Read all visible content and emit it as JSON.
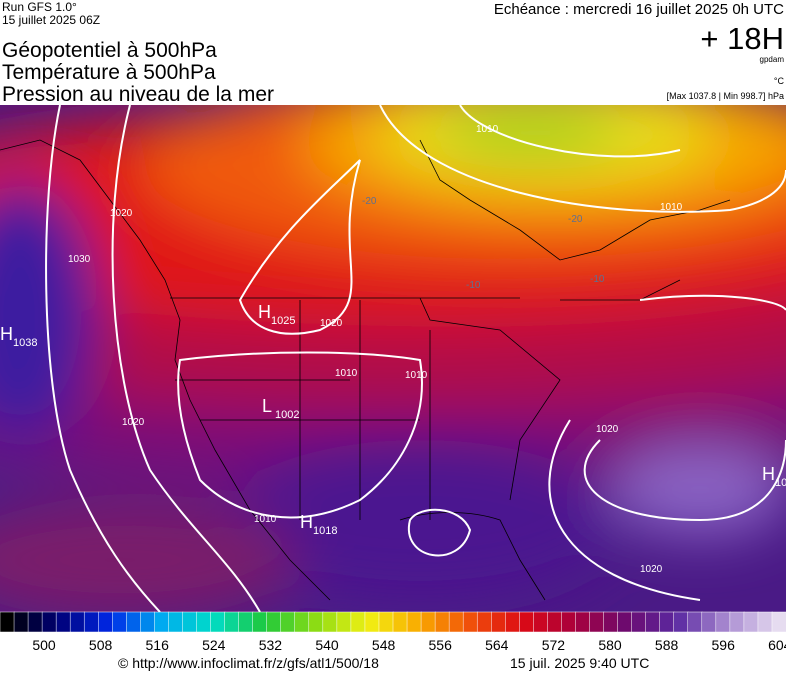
{
  "header": {
    "run": "Run GFS 1.0°",
    "run_date": "15 juillet 2025 06Z",
    "valid": "Echéance : mercredi 16 juillet 2025 0h UTC",
    "titles": [
      "Géopotentiel à 500hPa",
      "Température à 500hPa",
      "Pression au niveau de la mer"
    ],
    "lead": "+ 18H",
    "unit_geo": "gpdam",
    "unit_temp": "°C",
    "range": "[Max 1037.8 | Min 998.7] hPa"
  },
  "map": {
    "pressure_centers": [
      {
        "type": "H",
        "value": 1025
      },
      {
        "type": "H",
        "value": 1038
      },
      {
        "type": "L",
        "value": 1002
      },
      {
        "type": "H",
        "value": 1018
      },
      {
        "type": "H",
        "value": 10
      }
    ],
    "isobar_labels": [
      1010,
      1020,
      1030,
      1020,
      1010,
      1010,
      1020,
      1020,
      1010,
      1010,
      1020
    ],
    "temperature_labels": [
      -20,
      -20,
      -10,
      -10
    ]
  },
  "colorbar": {
    "labels": [
      500,
      508,
      516,
      524,
      532,
      540,
      548,
      556,
      564,
      572,
      580,
      588,
      596,
      604
    ]
  },
  "footer": {
    "source": "© http://www.infoclimat.fr/z/gfs/atl1/500/18",
    "timestamp": "15 juil. 2025  9:40 UTC"
  }
}
